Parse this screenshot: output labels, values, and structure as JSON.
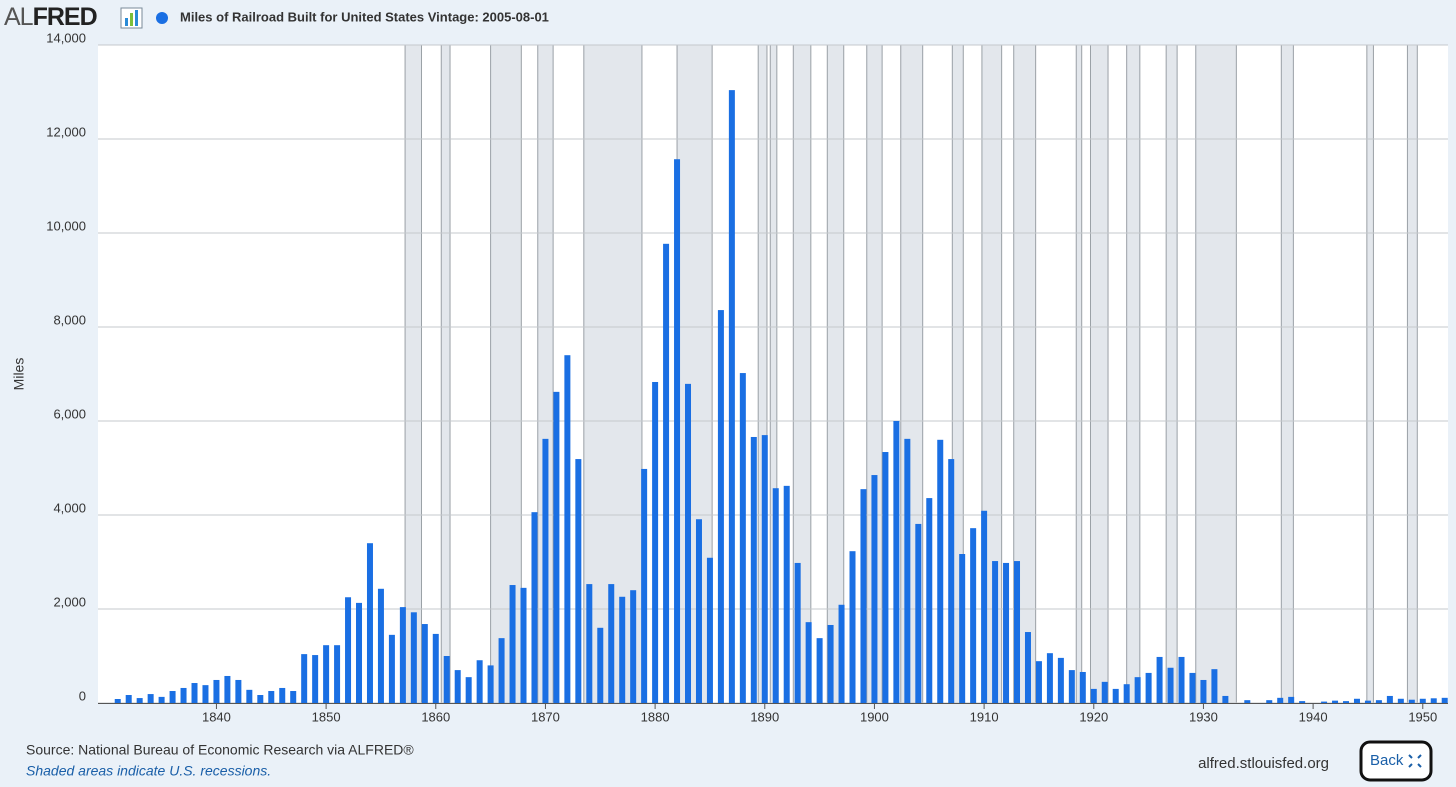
{
  "logo": [
    "AL",
    "FRED"
  ],
  "chart_data": {
    "type": "bar",
    "y_label": "Miles",
    "x": [
      1831,
      1832,
      1833,
      1834,
      1835,
      1836,
      1837,
      1838,
      1839,
      1840,
      1841,
      1842,
      1843,
      1844,
      1845,
      1846,
      1847,
      1848,
      1849,
      1850,
      1851,
      1852,
      1853,
      1854,
      1855,
      1856,
      1857,
      1858,
      1859,
      1860,
      1861,
      1862,
      1863,
      1864,
      1865,
      1866,
      1867,
      1868,
      1869,
      1870,
      1871,
      1872,
      1873,
      1874,
      1875,
      1876,
      1877,
      1878,
      1879,
      1880,
      1881,
      1882,
      1883,
      1884,
      1885,
      1886,
      1887,
      1888,
      1889,
      1890,
      1891,
      1892,
      1893,
      1894,
      1895,
      1896,
      1897,
      1898,
      1899,
      1900,
      1901,
      1902,
      1903,
      1904,
      1905,
      1906,
      1907,
      1908,
      1909,
      1910,
      1911,
      1912,
      1913,
      1914,
      1915,
      1916,
      1917,
      1918,
      1919,
      1920,
      1921,
      1922,
      1923,
      1924,
      1925,
      1926,
      1927,
      1928,
      1929,
      1930,
      1931,
      1932,
      1933,
      1934,
      1935,
      1936,
      1937,
      1938,
      1939,
      1940,
      1941,
      1942,
      1943,
      1944,
      1945,
      1946,
      1947,
      1948,
      1949,
      1950,
      1951,
      1952
    ],
    "series": [
      {
        "name": "Miles of Railroad Built for United States Vintage: 2005-08-01",
        "color": "#1a6fe3",
        "values": [
          85,
          170,
          105,
          190,
          130,
          255,
          320,
          425,
          380,
          490,
          575,
          490,
          280,
          170,
          255,
          320,
          255,
          1040,
          1020,
          1230,
          1230,
          2250,
          2130,
          3400,
          2430,
          1450,
          2040,
          1930,
          1680,
          1470,
          1000,
          700,
          550,
          910,
          800,
          1380,
          2510,
          2450,
          4060,
          5620,
          6620,
          7400,
          5190,
          2530,
          1600,
          2530,
          2260,
          2400,
          4980,
          6830,
          9770,
          11570,
          6790,
          3910,
          3090,
          8360,
          13040,
          7020,
          5660,
          5700,
          4570,
          4620,
          2980,
          1720,
          1380,
          1660,
          2090,
          3230,
          4550,
          4850,
          5340,
          6000,
          5620,
          3810,
          4360,
          5600,
          5190,
          3170,
          3720,
          4090,
          3020,
          2980,
          3020,
          1510,
          890,
          1060,
          960,
          700,
          660,
          300,
          450,
          300,
          400,
          550,
          640,
          980,
          750,
          980,
          640,
          490,
          720,
          150,
          null,
          60,
          null,
          60,
          110,
          130,
          40,
          null,
          30,
          50,
          40,
          90,
          50,
          60,
          150,
          90,
          70,
          90,
          100,
          110
        ]
      }
    ],
    "recessions": [
      [
        1857.2,
        1858.7
      ],
      [
        1860.5,
        1861.3
      ],
      [
        1865.0,
        1867.8
      ],
      [
        1869.3,
        1870.7
      ],
      [
        1873.5,
        1878.8
      ],
      [
        1882.0,
        1885.2
      ],
      [
        1889.4,
        1890.2
      ],
      [
        1890.5,
        1891.1
      ],
      [
        1892.6,
        1894.2
      ],
      [
        1895.7,
        1897.2
      ],
      [
        1899.3,
        1900.7
      ],
      [
        1902.4,
        1904.4
      ],
      [
        1907.1,
        1908.1
      ],
      [
        1909.8,
        1911.6
      ],
      [
        1912.7,
        1914.7
      ],
      [
        1918.4,
        1918.9
      ],
      [
        1919.7,
        1921.3
      ],
      [
        1923.0,
        1924.2
      ],
      [
        1926.6,
        1927.6
      ],
      [
        1929.3,
        1933.0
      ],
      [
        1937.1,
        1938.2
      ],
      [
        1944.9,
        1945.5
      ],
      [
        1948.6,
        1949.5
      ]
    ],
    "recession_color": "#e3e7ec",
    "xlim": [
      1829.2,
      1952.3
    ],
    "xticks": [
      1840,
      1850,
      1860,
      1870,
      1880,
      1890,
      1900,
      1910,
      1920,
      1930,
      1940,
      1950
    ],
    "ylim": [
      0,
      14000
    ],
    "yticks": [
      0,
      {
        "value": 2000,
        "label": "2,000"
      },
      {
        "value": 4000,
        "label": "4,000"
      },
      {
        "value": 6000,
        "label": "6,000"
      },
      {
        "value": 8000,
        "label": "8,000"
      },
      {
        "value": 10000,
        "label": "10,000"
      },
      {
        "value": 12000,
        "label": "12,000"
      },
      {
        "value": 14000,
        "label": "14,000"
      }
    ],
    "grid": true,
    "source": "Source: National Bureau of Economic Research via ALFRED®",
    "note": "Shaded areas indicate U.S. recessions.",
    "site": "alfred.stlouisfed.org",
    "button": "Back"
  }
}
